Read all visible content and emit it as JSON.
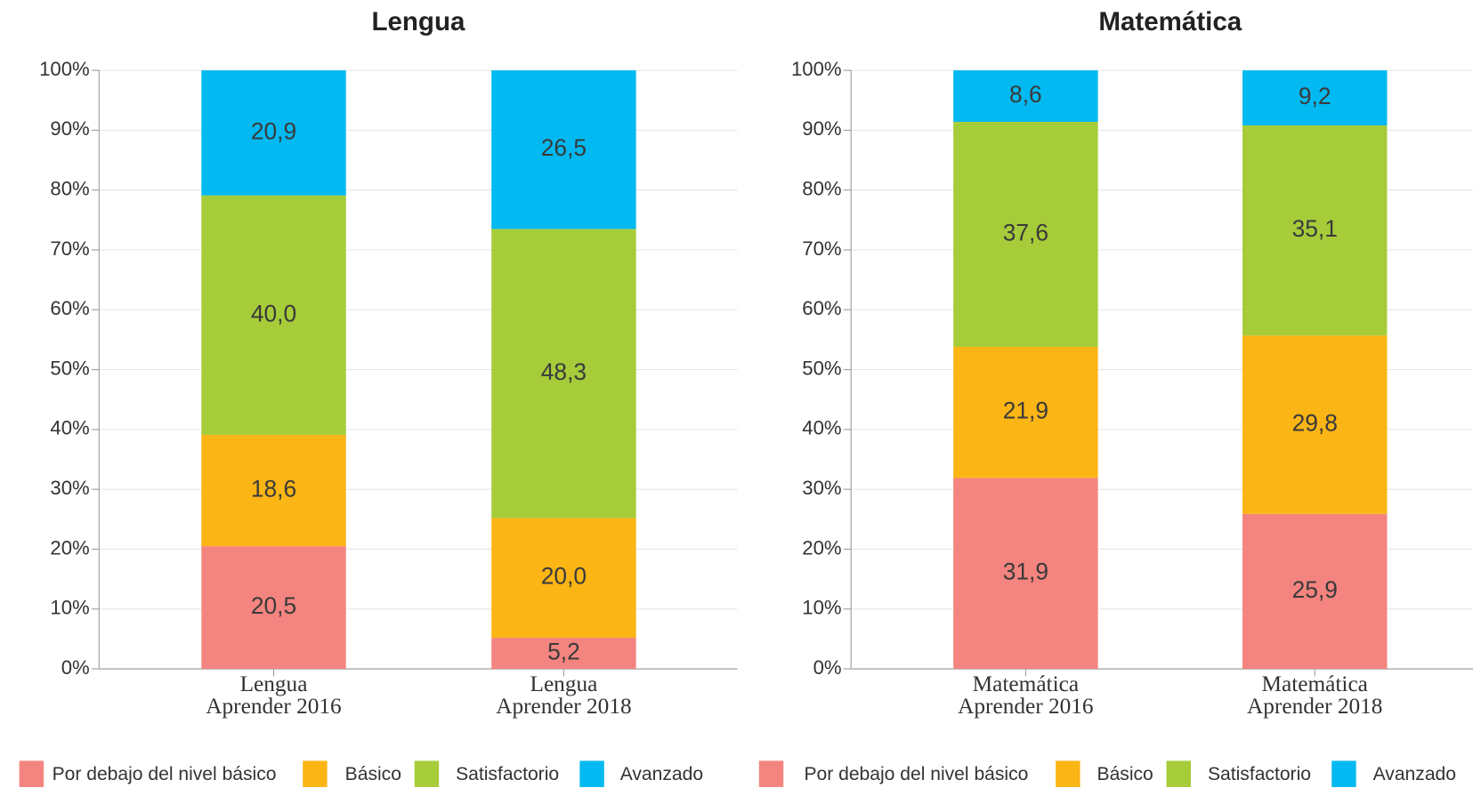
{
  "chart_data": [
    {
      "type": "stacked_bar",
      "title": "Lengua",
      "categories": [
        [
          "Lengua",
          "Aprender 2016"
        ],
        [
          "Lengua",
          "Aprender 2018"
        ]
      ],
      "ylim": [
        0,
        100
      ],
      "yticks": [
        {
          "value": 0,
          "label": "0%"
        },
        {
          "value": 10,
          "label": "10%"
        },
        {
          "value": 20,
          "label": "20%"
        },
        {
          "value": 30,
          "label": "30%"
        },
        {
          "value": 40,
          "label": "40%"
        },
        {
          "value": 50,
          "label": "50%"
        },
        {
          "value": 60,
          "label": "60%"
        },
        {
          "value": 70,
          "label": "70%"
        },
        {
          "value": 80,
          "label": "80%"
        },
        {
          "value": 90,
          "label": "90%"
        },
        {
          "value": 100,
          "label": "100%"
        }
      ],
      "grid": true,
      "legend": "bottom",
      "series": [
        {
          "name": "Por debajo del nivel básico",
          "color": "#f4847f",
          "values": [
            20.5,
            5.2
          ],
          "value_labels": [
            "20,5",
            "5,2"
          ]
        },
        {
          "name": "Básico",
          "color": "#fbb515",
          "values": [
            18.6,
            20.0
          ],
          "value_labels": [
            "18,6",
            "20,0"
          ]
        },
        {
          "name": "Satisfactorio",
          "color": "#a6cc3a",
          "values": [
            40.0,
            48.3
          ],
          "value_labels": [
            "40,0",
            "48,3"
          ]
        },
        {
          "name": "Avanzado",
          "color": "#02b9f1",
          "values": [
            20.9,
            26.5
          ],
          "value_labels": [
            "20,9",
            "26,5"
          ]
        }
      ]
    },
    {
      "type": "stacked_bar",
      "title": "Matemática",
      "categories": [
        [
          "Matemática",
          "Aprender 2016"
        ],
        [
          "Matemática",
          "Aprender 2018"
        ]
      ],
      "ylim": [
        0,
        100
      ],
      "yticks": [
        {
          "value": 0,
          "label": "0%"
        },
        {
          "value": 10,
          "label": "10%"
        },
        {
          "value": 20,
          "label": "20%"
        },
        {
          "value": 30,
          "label": "30%"
        },
        {
          "value": 40,
          "label": "40%"
        },
        {
          "value": 50,
          "label": "50%"
        },
        {
          "value": 60,
          "label": "60%"
        },
        {
          "value": 70,
          "label": "70%"
        },
        {
          "value": 80,
          "label": "80%"
        },
        {
          "value": 90,
          "label": "90%"
        },
        {
          "value": 100,
          "label": "100%"
        }
      ],
      "grid": true,
      "legend": "bottom",
      "series": [
        {
          "name": "Por debajo del nivel básico",
          "color": "#f4847f",
          "values": [
            31.9,
            25.9
          ],
          "value_labels": [
            "31,9",
            "25,9"
          ]
        },
        {
          "name": "Básico",
          "color": "#fbb515",
          "values": [
            21.9,
            29.8
          ],
          "value_labels": [
            "21,9",
            "29,8"
          ]
        },
        {
          "name": "Satisfactorio",
          "color": "#a6cc3a",
          "values": [
            37.6,
            35.1
          ],
          "value_labels": [
            "37,6",
            "35,1"
          ]
        },
        {
          "name": "Avanzado",
          "color": "#02b9f1",
          "values": [
            8.6,
            9.2
          ],
          "value_labels": [
            "8,6",
            "9,2"
          ]
        }
      ]
    }
  ]
}
